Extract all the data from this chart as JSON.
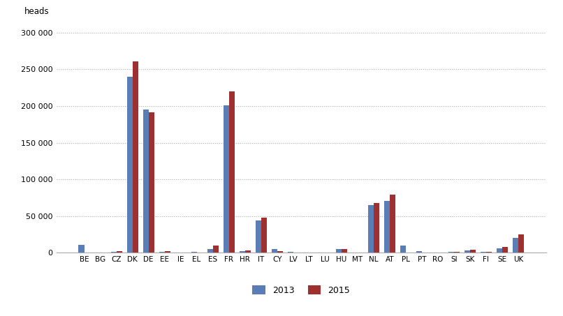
{
  "categories": [
    "BE",
    "BG",
    "CZ",
    "DK",
    "DE",
    "EE",
    "IE",
    "EL",
    "ES",
    "FR",
    "HR",
    "IT",
    "CY",
    "LV",
    "LT",
    "LU",
    "HU",
    "MT",
    "NL",
    "AT",
    "PL",
    "PT",
    "RO",
    "SI",
    "SK",
    "FI",
    "SE",
    "UK"
  ],
  "values_2013": [
    11000,
    0,
    1500,
    240000,
    195000,
    1500,
    0,
    1000,
    5000,
    201000,
    2000,
    44000,
    5000,
    1000,
    0,
    500,
    5500,
    0,
    65000,
    71000,
    10000,
    2000,
    500,
    1000,
    3500,
    1000,
    6500,
    20000
  ],
  "values_2015": [
    0,
    0,
    2500,
    261000,
    191000,
    2500,
    0,
    0,
    10000,
    220000,
    3000,
    48000,
    2000,
    0,
    0,
    500,
    5500,
    0,
    68000,
    79000,
    0,
    0,
    0,
    1000,
    4000,
    1000,
    8000,
    25000
  ],
  "color_2013": "#5b7db5",
  "color_2015": "#9e3030",
  "ylabel": "heads",
  "ylim": [
    0,
    310000
  ],
  "yticks": [
    0,
    50000,
    100000,
    150000,
    200000,
    250000,
    300000
  ],
  "legend_labels": [
    "2013",
    "2015"
  ],
  "background_color": "#ffffff",
  "grid_color": "#aaaaaa"
}
